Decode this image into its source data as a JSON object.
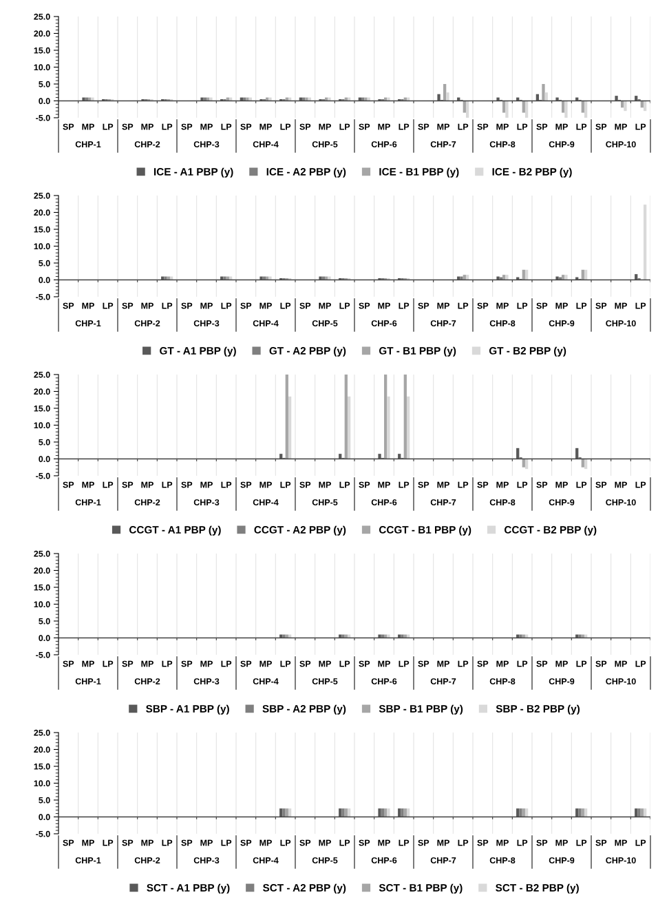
{
  "chart_data": [
    {
      "type": "bar",
      "categories": [
        "SP",
        "MP",
        "LP",
        "SP",
        "MP",
        "LP",
        "SP",
        "MP",
        "LP",
        "SP",
        "MP",
        "LP",
        "SP",
        "MP",
        "LP",
        "SP",
        "MP",
        "LP",
        "SP",
        "MP",
        "LP",
        "SP",
        "MP",
        "LP",
        "SP",
        "MP",
        "LP",
        "SP",
        "MP",
        "LP"
      ],
      "annotations": [
        "CHP-1",
        "CHP-2",
        "CHP-3",
        "CHP-4",
        "CHP-5",
        "CHP-6",
        "CHP-7",
        "CHP-8",
        "CHP-9",
        "CHP-10"
      ],
      "ylim": [
        -5,
        25
      ],
      "yticks": [
        {
          "value": -5,
          "label": "-5.0"
        },
        {
          "value": 0,
          "label": "0.0"
        },
        {
          "value": 5,
          "label": "5.0"
        },
        {
          "value": 10,
          "label": "10.0"
        },
        {
          "value": 15,
          "label": "15.0"
        },
        {
          "value": 20,
          "label": "20.0"
        },
        {
          "value": 25,
          "label": "25.0"
        }
      ],
      "grid": "x",
      "legend": "bottom",
      "series": [
        {
          "name": "ICE - A1 PBP (y)",
          "color": "#595959",
          "values": [
            null,
            1.0,
            0.5,
            null,
            0.5,
            0.5,
            null,
            1.0,
            0.5,
            1.0,
            0.5,
            0.5,
            1.0,
            0.5,
            0.5,
            1.0,
            0.5,
            0.5,
            null,
            2.0,
            1.0,
            null,
            1.0,
            1.0,
            2.0,
            1.0,
            1.0,
            null,
            1.5,
            1.5
          ]
        },
        {
          "name": "ICE - A2 PBP (y)",
          "color": "#7f7f7f",
          "values": [
            null,
            1.0,
            0.5,
            null,
            0.5,
            0.5,
            null,
            1.0,
            0.5,
            1.0,
            0.5,
            0.5,
            1.0,
            0.5,
            0.5,
            1.0,
            0.5,
            0.5,
            null,
            0.3,
            0.3,
            null,
            0.3,
            0.3,
            0.3,
            0.3,
            0.3,
            null,
            0.3,
            0.5
          ]
        },
        {
          "name": "ICE - B1 PBP (y)",
          "color": "#a6a6a6",
          "values": [
            null,
            1.0,
            0.5,
            null,
            0.5,
            0.5,
            null,
            1.0,
            1.0,
            1.0,
            1.0,
            1.0,
            1.0,
            1.0,
            1.0,
            1.0,
            1.0,
            1.0,
            null,
            5.0,
            -3.5,
            null,
            -3.5,
            -3.5,
            5.0,
            -3.5,
            -3.5,
            null,
            -2.0,
            -2.0
          ]
        },
        {
          "name": "ICE - B2 PBP (y)",
          "color": "#d9d9d9",
          "values": [
            null,
            1.0,
            0.5,
            null,
            0.5,
            0.5,
            null,
            1.0,
            1.0,
            1.0,
            1.0,
            1.0,
            1.0,
            1.0,
            1.0,
            1.0,
            1.0,
            1.0,
            null,
            2.5,
            -5.0,
            null,
            -5.0,
            -5.0,
            2.5,
            -5.0,
            -5.0,
            null,
            -3.0,
            -3.0
          ]
        }
      ]
    },
    {
      "type": "bar",
      "categories": [
        "SP",
        "MP",
        "LP",
        "SP",
        "MP",
        "LP",
        "SP",
        "MP",
        "LP",
        "SP",
        "MP",
        "LP",
        "SP",
        "MP",
        "LP",
        "SP",
        "MP",
        "LP",
        "SP",
        "MP",
        "LP",
        "SP",
        "MP",
        "LP",
        "SP",
        "MP",
        "LP",
        "SP",
        "MP",
        "LP"
      ],
      "annotations": [
        "CHP-1",
        "CHP-2",
        "CHP-3",
        "CHP-4",
        "CHP-5",
        "CHP-6",
        "CHP-7",
        "CHP-8",
        "CHP-9",
        "CHP-10"
      ],
      "ylim": [
        -5,
        25
      ],
      "yticks": [
        {
          "value": -5,
          "label": "-5.0"
        },
        {
          "value": 0,
          "label": "0.0"
        },
        {
          "value": 5,
          "label": "5.0"
        },
        {
          "value": 10,
          "label": "10.0"
        },
        {
          "value": 15,
          "label": "15.0"
        },
        {
          "value": 20,
          "label": "20.0"
        },
        {
          "value": 25,
          "label": "25.0"
        }
      ],
      "grid": "x",
      "legend": "bottom",
      "series": [
        {
          "name": "GT - A1 PBP (y)",
          "color": "#595959",
          "values": [
            null,
            null,
            null,
            null,
            null,
            1.0,
            null,
            null,
            1.0,
            null,
            1.0,
            0.5,
            null,
            1.0,
            0.5,
            null,
            0.5,
            0.5,
            null,
            null,
            1.0,
            null,
            1.0,
            0.8,
            null,
            1.0,
            0.8,
            null,
            null,
            1.7
          ]
        },
        {
          "name": "GT - A2 PBP (y)",
          "color": "#7f7f7f",
          "values": [
            null,
            null,
            null,
            null,
            null,
            1.0,
            null,
            null,
            1.0,
            null,
            1.0,
            0.5,
            null,
            1.0,
            0.5,
            null,
            0.5,
            0.5,
            null,
            null,
            1.0,
            null,
            0.8,
            0.3,
            null,
            0.8,
            0.3,
            null,
            null,
            0.5
          ]
        },
        {
          "name": "GT - B1 PBP (y)",
          "color": "#a6a6a6",
          "values": [
            null,
            null,
            null,
            null,
            null,
            1.0,
            null,
            null,
            1.0,
            null,
            1.0,
            0.5,
            null,
            1.0,
            0.5,
            null,
            0.5,
            0.5,
            null,
            null,
            1.5,
            null,
            1.5,
            3.0,
            null,
            1.5,
            3.0,
            null,
            null,
            null
          ]
        },
        {
          "name": "GT - B2 PBP (y)",
          "color": "#d9d9d9",
          "values": [
            null,
            null,
            null,
            null,
            null,
            1.0,
            null,
            null,
            1.0,
            null,
            1.0,
            0.5,
            null,
            1.0,
            0.5,
            null,
            0.5,
            0.5,
            null,
            null,
            1.5,
            null,
            1.5,
            3.0,
            null,
            1.5,
            3.0,
            null,
            null,
            22.3
          ]
        }
      ]
    },
    {
      "type": "bar",
      "categories": [
        "SP",
        "MP",
        "LP",
        "SP",
        "MP",
        "LP",
        "SP",
        "MP",
        "LP",
        "SP",
        "MP",
        "LP",
        "SP",
        "MP",
        "LP",
        "SP",
        "MP",
        "LP",
        "SP",
        "MP",
        "LP",
        "SP",
        "MP",
        "LP",
        "SP",
        "MP",
        "LP",
        "SP",
        "MP",
        "LP"
      ],
      "annotations": [
        "CHP-1",
        "CHP-2",
        "CHP-3",
        "CHP-4",
        "CHP-5",
        "CHP-6",
        "CHP-7",
        "CHP-8",
        "CHP-9",
        "CHP-10"
      ],
      "ylim": [
        -5,
        25
      ],
      "yticks": [
        {
          "value": -5,
          "label": "-5.0"
        },
        {
          "value": 0,
          "label": "0.0"
        },
        {
          "value": 5,
          "label": "5.0"
        },
        {
          "value": 10,
          "label": "10.0"
        },
        {
          "value": 15,
          "label": "15.0"
        },
        {
          "value": 20,
          "label": "20.0"
        },
        {
          "value": 25,
          "label": "25.0"
        }
      ],
      "grid": "x",
      "legend": "bottom",
      "series": [
        {
          "name": "CCGT - A1 PBP (y)",
          "color": "#595959",
          "values": [
            null,
            null,
            null,
            null,
            null,
            null,
            null,
            null,
            null,
            null,
            null,
            1.5,
            null,
            null,
            1.5,
            null,
            1.5,
            1.5,
            null,
            null,
            null,
            null,
            null,
            3.2,
            null,
            null,
            3.2,
            null,
            null,
            null
          ]
        },
        {
          "name": "CCGT - A2 PBP (y)",
          "color": "#7f7f7f",
          "values": [
            null,
            null,
            null,
            null,
            null,
            null,
            null,
            null,
            null,
            null,
            null,
            0.3,
            null,
            null,
            0.3,
            null,
            0.3,
            0.3,
            null,
            null,
            null,
            null,
            null,
            0.5,
            null,
            null,
            0.5,
            null,
            null,
            null
          ]
        },
        {
          "name": "CCGT - B1 PBP (y)",
          "color": "#a6a6a6",
          "values": [
            null,
            null,
            null,
            null,
            null,
            null,
            null,
            null,
            null,
            null,
            null,
            25.0,
            null,
            null,
            25.0,
            null,
            25.0,
            25.0,
            null,
            null,
            null,
            null,
            null,
            -2.5,
            null,
            null,
            -2.5,
            null,
            null,
            null
          ]
        },
        {
          "name": "CCGT - B2 PBP (y)",
          "color": "#d9d9d9",
          "values": [
            null,
            null,
            null,
            null,
            null,
            null,
            null,
            null,
            null,
            null,
            null,
            18.5,
            null,
            null,
            18.5,
            null,
            18.5,
            18.5,
            null,
            null,
            null,
            null,
            null,
            -3.0,
            null,
            null,
            -3.0,
            null,
            null,
            null
          ]
        }
      ]
    },
    {
      "type": "bar",
      "categories": [
        "SP",
        "MP",
        "LP",
        "SP",
        "MP",
        "LP",
        "SP",
        "MP",
        "LP",
        "SP",
        "MP",
        "LP",
        "SP",
        "MP",
        "LP",
        "SP",
        "MP",
        "LP",
        "SP",
        "MP",
        "LP",
        "SP",
        "MP",
        "LP",
        "SP",
        "MP",
        "LP",
        "SP",
        "MP",
        "LP"
      ],
      "annotations": [
        "CHP-1",
        "CHP-2",
        "CHP-3",
        "CHP-4",
        "CHP-5",
        "CHP-6",
        "CHP-7",
        "CHP-8",
        "CHP-9",
        "CHP-10"
      ],
      "ylim": [
        -5,
        25
      ],
      "yticks": [
        {
          "value": -5,
          "label": "-5.0"
        },
        {
          "value": 0,
          "label": "0.0"
        },
        {
          "value": 5,
          "label": "5.0"
        },
        {
          "value": 10,
          "label": "10.0"
        },
        {
          "value": 15,
          "label": "15.0"
        },
        {
          "value": 20,
          "label": "20.0"
        },
        {
          "value": 25,
          "label": "25.0"
        }
      ],
      "grid": "x",
      "legend": "bottom",
      "series": [
        {
          "name": "SBP - A1 PBP (y)",
          "color": "#595959",
          "values": [
            null,
            null,
            null,
            null,
            null,
            null,
            null,
            null,
            null,
            null,
            null,
            1.0,
            null,
            null,
            1.0,
            null,
            1.0,
            1.0,
            null,
            null,
            null,
            null,
            null,
            1.0,
            null,
            null,
            1.0,
            null,
            null,
            null
          ]
        },
        {
          "name": "SBP - A2 PBP (y)",
          "color": "#7f7f7f",
          "values": [
            null,
            null,
            null,
            null,
            null,
            null,
            null,
            null,
            null,
            null,
            null,
            1.0,
            null,
            null,
            1.0,
            null,
            1.0,
            1.0,
            null,
            null,
            null,
            null,
            null,
            1.0,
            null,
            null,
            1.0,
            null,
            null,
            null
          ]
        },
        {
          "name": "SBP - B1 PBP (y)",
          "color": "#a6a6a6",
          "values": [
            null,
            null,
            null,
            null,
            null,
            null,
            null,
            null,
            null,
            null,
            null,
            1.0,
            null,
            null,
            1.0,
            null,
            1.0,
            1.0,
            null,
            null,
            null,
            null,
            null,
            1.0,
            null,
            null,
            1.0,
            null,
            null,
            null
          ]
        },
        {
          "name": "SBP - B2 PBP (y)",
          "color": "#d9d9d9",
          "values": [
            null,
            null,
            null,
            null,
            null,
            null,
            null,
            null,
            null,
            null,
            null,
            1.0,
            null,
            null,
            1.0,
            null,
            1.0,
            1.0,
            null,
            null,
            null,
            null,
            null,
            1.0,
            null,
            null,
            1.0,
            null,
            null,
            null
          ]
        }
      ]
    },
    {
      "type": "bar",
      "categories": [
        "SP",
        "MP",
        "LP",
        "SP",
        "MP",
        "LP",
        "SP",
        "MP",
        "LP",
        "SP",
        "MP",
        "LP",
        "SP",
        "MP",
        "LP",
        "SP",
        "MP",
        "LP",
        "SP",
        "MP",
        "LP",
        "SP",
        "MP",
        "LP",
        "SP",
        "MP",
        "LP",
        "SP",
        "MP",
        "LP"
      ],
      "annotations": [
        "CHP-1",
        "CHP-2",
        "CHP-3",
        "CHP-4",
        "CHP-5",
        "CHP-6",
        "CHP-7",
        "CHP-8",
        "CHP-9",
        "CHP-10"
      ],
      "ylim": [
        -5,
        25
      ],
      "yticks": [
        {
          "value": -5,
          "label": "-5.0"
        },
        {
          "value": 0,
          "label": "0.0"
        },
        {
          "value": 5,
          "label": "5.0"
        },
        {
          "value": 10,
          "label": "10.0"
        },
        {
          "value": 15,
          "label": "15.0"
        },
        {
          "value": 20,
          "label": "20.0"
        },
        {
          "value": 25,
          "label": "25.0"
        }
      ],
      "grid": "x",
      "legend": "bottom",
      "series": [
        {
          "name": "SCT - A1 PBP (y)",
          "color": "#595959",
          "values": [
            null,
            null,
            null,
            null,
            null,
            null,
            null,
            null,
            null,
            null,
            null,
            2.5,
            null,
            null,
            2.5,
            null,
            2.5,
            2.5,
            null,
            null,
            null,
            null,
            null,
            2.5,
            null,
            null,
            2.5,
            null,
            null,
            2.5
          ]
        },
        {
          "name": "SCT - A2 PBP (y)",
          "color": "#7f7f7f",
          "values": [
            null,
            null,
            null,
            null,
            null,
            null,
            null,
            null,
            null,
            null,
            null,
            2.5,
            null,
            null,
            2.5,
            null,
            2.5,
            2.5,
            null,
            null,
            null,
            null,
            null,
            2.5,
            null,
            null,
            2.5,
            null,
            null,
            2.5
          ]
        },
        {
          "name": "SCT - B1 PBP (y)",
          "color": "#a6a6a6",
          "values": [
            null,
            null,
            null,
            null,
            null,
            null,
            null,
            null,
            null,
            null,
            null,
            2.5,
            null,
            null,
            2.5,
            null,
            2.5,
            2.5,
            null,
            null,
            null,
            null,
            null,
            2.5,
            null,
            null,
            2.5,
            null,
            null,
            2.5
          ]
        },
        {
          "name": "SCT - B2 PBP (y)",
          "color": "#d9d9d9",
          "values": [
            null,
            null,
            null,
            null,
            null,
            null,
            null,
            null,
            null,
            null,
            null,
            2.5,
            null,
            null,
            2.5,
            null,
            2.5,
            2.5,
            null,
            null,
            null,
            null,
            null,
            2.5,
            null,
            null,
            2.5,
            null,
            null,
            2.5
          ]
        }
      ]
    }
  ]
}
